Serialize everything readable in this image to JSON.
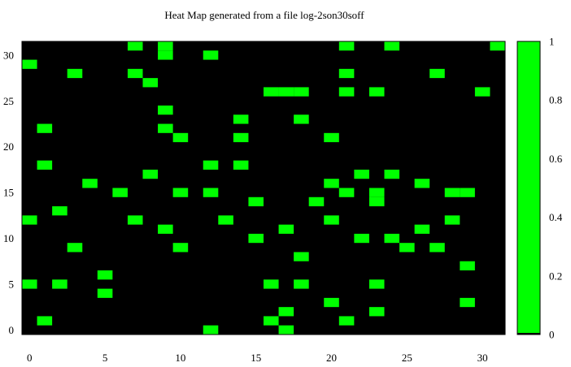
{
  "chart_data": {
    "type": "heatmap",
    "title": "Heat Map generated from a file log-2son30soff",
    "xlabel": "",
    "ylabel": "",
    "xlim": [
      -0.5,
      31.5
    ],
    "ylim": [
      -0.5,
      31.5
    ],
    "x_ticks": [
      0,
      5,
      10,
      15,
      20,
      25,
      30
    ],
    "y_ticks": [
      0,
      5,
      10,
      15,
      20,
      25,
      30
    ],
    "colorbar": {
      "range": [
        0,
        1
      ],
      "ticks": [
        "0",
        "0.2",
        "0.4",
        "0.6",
        "0.8",
        "1"
      ],
      "low_color": "#000000",
      "high_color": "#00ff00"
    },
    "grid": false,
    "background_value": 0,
    "cells_value_1": [
      [
        7,
        31
      ],
      [
        9,
        31
      ],
      [
        21,
        31
      ],
      [
        24,
        31
      ],
      [
        31,
        31
      ],
      [
        9,
        30
      ],
      [
        12,
        30
      ],
      [
        0,
        29
      ],
      [
        3,
        28
      ],
      [
        7,
        28
      ],
      [
        21,
        28
      ],
      [
        27,
        28
      ],
      [
        8,
        27
      ],
      [
        16,
        26
      ],
      [
        17,
        26
      ],
      [
        18,
        26
      ],
      [
        21,
        26
      ],
      [
        23,
        26
      ],
      [
        30,
        26
      ],
      [
        9,
        24
      ],
      [
        14,
        23
      ],
      [
        18,
        23
      ],
      [
        1,
        22
      ],
      [
        9,
        22
      ],
      [
        10,
        21
      ],
      [
        14,
        21
      ],
      [
        20,
        21
      ],
      [
        1,
        18
      ],
      [
        12,
        18
      ],
      [
        14,
        18
      ],
      [
        8,
        17
      ],
      [
        22,
        17
      ],
      [
        24,
        17
      ],
      [
        4,
        16
      ],
      [
        20,
        16
      ],
      [
        26,
        16
      ],
      [
        6,
        15
      ],
      [
        10,
        15
      ],
      [
        12,
        15
      ],
      [
        21,
        15
      ],
      [
        23,
        15
      ],
      [
        28,
        15
      ],
      [
        29,
        15
      ],
      [
        15,
        14
      ],
      [
        19,
        14
      ],
      [
        23,
        14
      ],
      [
        2,
        13
      ],
      [
        0,
        12
      ],
      [
        7,
        12
      ],
      [
        13,
        12
      ],
      [
        20,
        12
      ],
      [
        28,
        12
      ],
      [
        9,
        11
      ],
      [
        17,
        11
      ],
      [
        26,
        11
      ],
      [
        15,
        10
      ],
      [
        22,
        10
      ],
      [
        24,
        10
      ],
      [
        3,
        9
      ],
      [
        10,
        9
      ],
      [
        25,
        9
      ],
      [
        27,
        9
      ],
      [
        18,
        8
      ],
      [
        29,
        7
      ],
      [
        5,
        6
      ],
      [
        0,
        5
      ],
      [
        2,
        5
      ],
      [
        16,
        5
      ],
      [
        18,
        5
      ],
      [
        23,
        5
      ],
      [
        5,
        4
      ],
      [
        20,
        3
      ],
      [
        29,
        3
      ],
      [
        17,
        2
      ],
      [
        23,
        2
      ],
      [
        1,
        1
      ],
      [
        16,
        1
      ],
      [
        21,
        1
      ],
      [
        12,
        0
      ],
      [
        17,
        0
      ]
    ]
  }
}
